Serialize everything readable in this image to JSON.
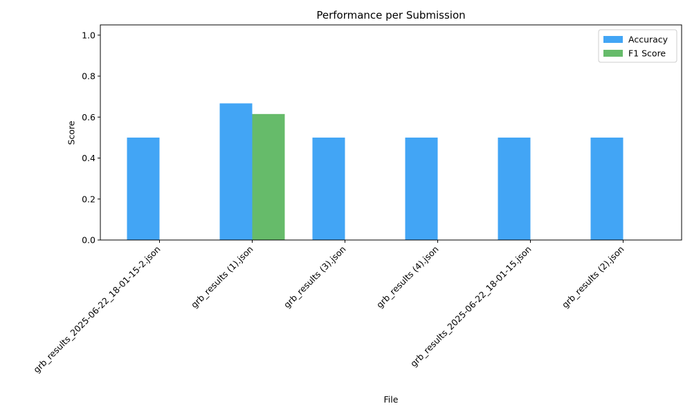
{
  "chart_data": {
    "type": "bar",
    "title": "Performance per Submission",
    "xlabel": "File",
    "ylabel": "Score",
    "categories": [
      "grb_results_2025-06-22_18-01-15-2.json",
      "grb_results (1).json",
      "grb_results (3).json",
      "grb_results (4).json",
      "grb_results_2025-06-22_18-01-15.json",
      "grb_results (2).json"
    ],
    "series": [
      {
        "name": "Accuracy",
        "color": "#42a5f5",
        "values": [
          0.5,
          0.667,
          0.5,
          0.5,
          0.5,
          0.5
        ]
      },
      {
        "name": "F1 Score",
        "color": "#66bb6a",
        "values": [
          0,
          0.615,
          0,
          0,
          0,
          0
        ]
      }
    ],
    "ylim": [
      0,
      1.05
    ],
    "yticks": [
      "0.0",
      "0.2",
      "0.4",
      "0.6",
      "0.8",
      "1.0"
    ],
    "grid": false,
    "legend_position": "top-right"
  }
}
